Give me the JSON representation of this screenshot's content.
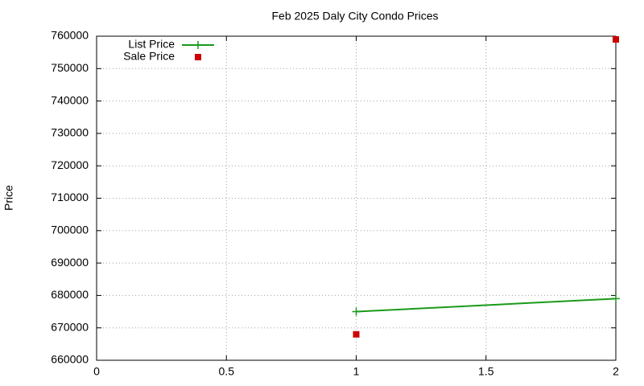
{
  "chart_data": {
    "type": "line",
    "title": "Feb 2025 Daly City Condo Prices",
    "y_label": "Price",
    "x": [
      1,
      2
    ],
    "series": [
      {
        "name": "List Price",
        "color": "#1a9a1a",
        "mode": "linespoints",
        "values": [
          675000,
          679000
        ]
      },
      {
        "name": "Sale Price",
        "color": "#cc0000",
        "mode": "points",
        "values": [
          668000,
          759000
        ]
      }
    ],
    "xlim": [
      0,
      2
    ],
    "xticks": [
      0,
      0.5,
      1,
      1.5,
      2
    ],
    "ylim": [
      660000,
      760000
    ],
    "yticks": [
      660000,
      670000,
      680000,
      690000,
      700000,
      710000,
      720000,
      730000,
      740000,
      750000,
      760000
    ],
    "grid": true,
    "legend": "top-left"
  }
}
